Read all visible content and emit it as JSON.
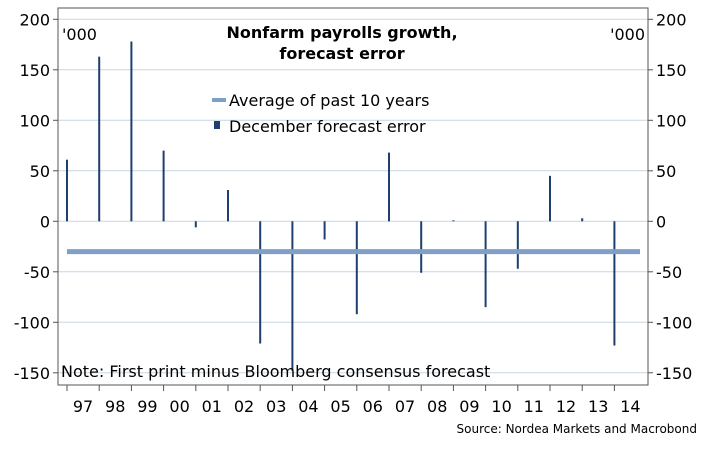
{
  "chart_data": {
    "type": "bar",
    "title_lines": [
      "Nonfarm payrolls growth,",
      "forecast error"
    ],
    "unit_left": "'000",
    "unit_right": "'000",
    "categories": [
      "97",
      "98",
      "99",
      "00",
      "01",
      "02",
      "03",
      "04",
      "05",
      "06",
      "07",
      "08",
      "09",
      "10",
      "11",
      "12",
      "13",
      "14"
    ],
    "series": [
      {
        "name": "December forecast error",
        "type": "bar",
        "color": "#1f3f6e",
        "values": [
          61,
          163,
          178,
          70,
          -6,
          31,
          -121,
          -148,
          -18,
          -92,
          68,
          -51,
          1,
          -85,
          -47,
          45,
          3,
          -123
        ]
      },
      {
        "name": "Average of past 10 years",
        "type": "line",
        "color": "#7f9fc6",
        "value": -30
      }
    ],
    "ylim": [
      -160,
      210
    ],
    "yticks": [
      -150,
      -100,
      -50,
      0,
      50,
      100,
      150,
      200
    ],
    "grid": true,
    "legend_position": "top-center",
    "note": "Note: First print minus Bloomberg consensus forecast",
    "source": "Source: Nordea Markets and Macrobond"
  }
}
